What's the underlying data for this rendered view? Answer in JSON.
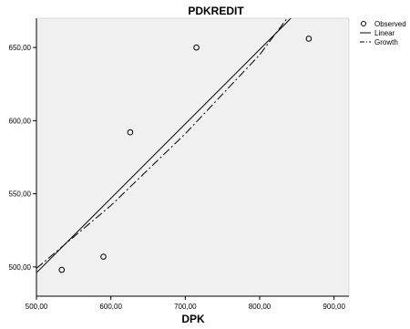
{
  "chart_data": {
    "type": "scatter",
    "title": "PDKREDIT",
    "xlabel": "DPK",
    "ylabel": "",
    "xlim": [
      500,
      920
    ],
    "ylim": [
      480,
      670
    ],
    "x_ticks": [
      500,
      600,
      700,
      800,
      900
    ],
    "y_ticks": [
      500,
      550,
      600,
      650
    ],
    "x_tick_labels": [
      "500,00",
      "600,00",
      "700,00",
      "800,00",
      "900,00"
    ],
    "y_tick_labels": [
      "500,00",
      "550,00",
      "600,00",
      "650,00"
    ],
    "grid": false,
    "legend_position": "top-right",
    "colors": {
      "plot_background": "#f0f0f0",
      "axis": "#000000",
      "series": "#000000"
    },
    "series": [
      {
        "name": "Observed",
        "kind": "points",
        "marker": "hollow-circle",
        "points": [
          {
            "x": 534,
            "y": 498
          },
          {
            "x": 590,
            "y": 507
          },
          {
            "x": 626,
            "y": 592
          },
          {
            "x": 715,
            "y": 650
          },
          {
            "x": 866,
            "y": 656
          }
        ]
      },
      {
        "name": "Linear",
        "kind": "line",
        "style": "solid",
        "points": [
          {
            "x": 500,
            "y": 496
          },
          {
            "x": 842,
            "y": 670
          }
        ]
      },
      {
        "name": "Growth",
        "kind": "line",
        "style": "dash-dot",
        "points": [
          {
            "x": 500,
            "y": 499
          },
          {
            "x": 600,
            "y": 542
          },
          {
            "x": 700,
            "y": 591
          },
          {
            "x": 800,
            "y": 645
          },
          {
            "x": 837,
            "y": 670
          }
        ]
      }
    ]
  }
}
